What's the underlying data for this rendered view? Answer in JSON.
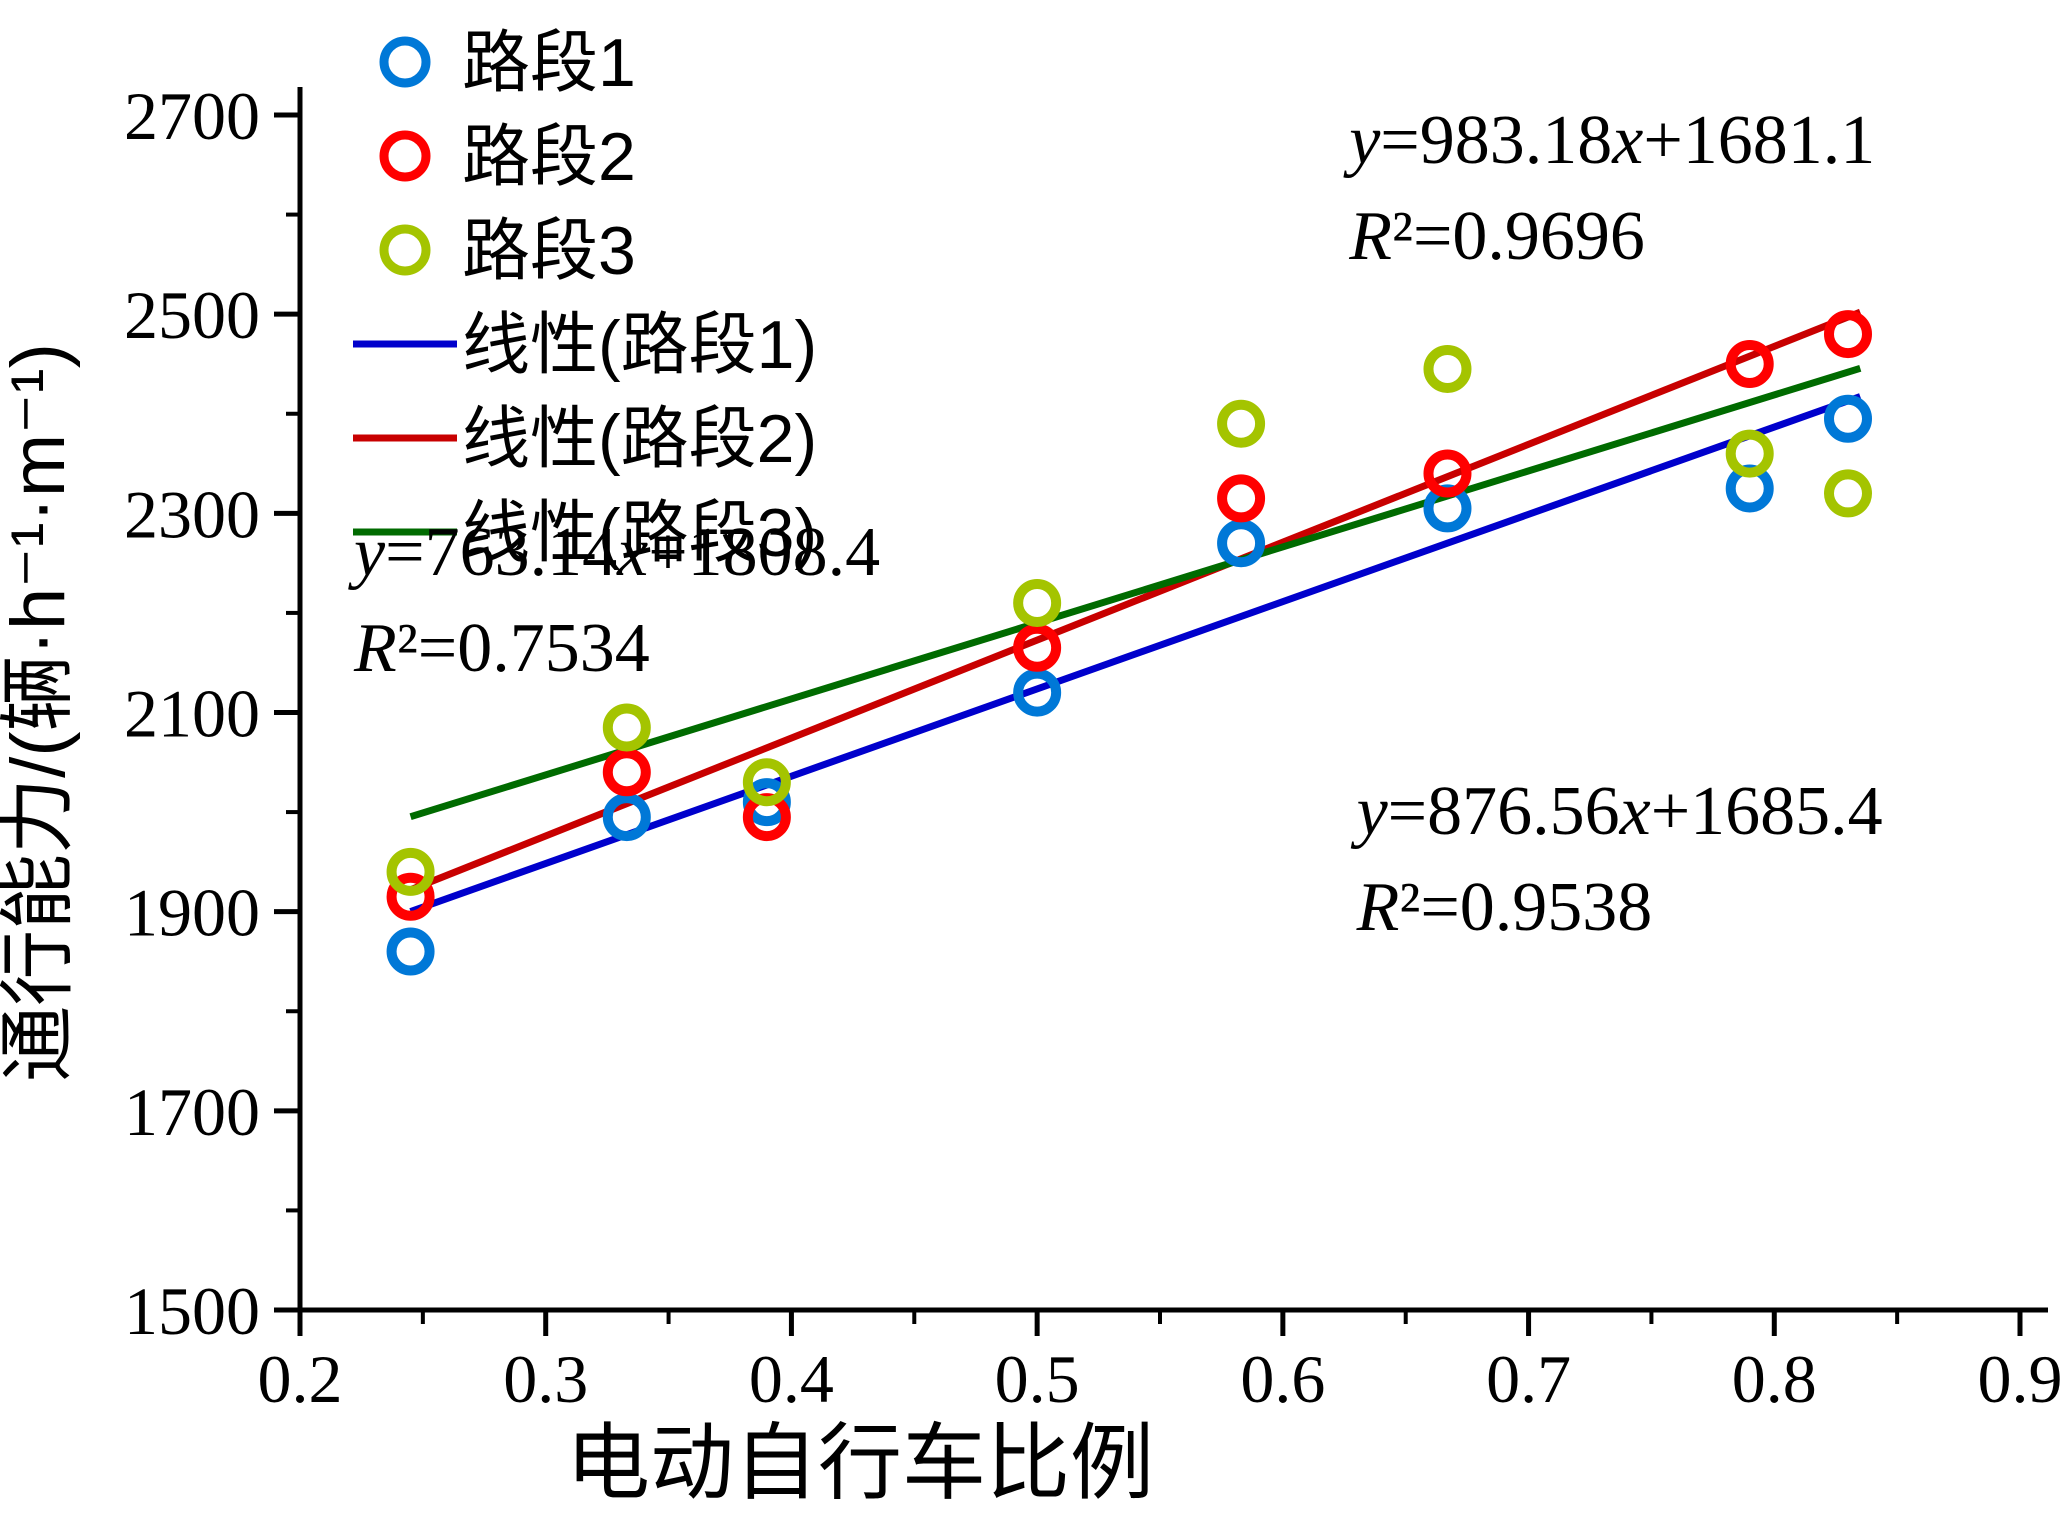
{
  "chart_data": {
    "type": "scatter",
    "title": "",
    "xlabel": "电动自行车比例",
    "ylabel": "通行能力/(辆·h⁻¹·m⁻¹)",
    "xlim": [
      0.2,
      0.9
    ],
    "ylim": [
      1500,
      2700
    ],
    "x_ticks": [
      0.2,
      0.3,
      0.4,
      0.5,
      0.6,
      0.7,
      0.8,
      0.9
    ],
    "y_ticks": [
      1500,
      1700,
      1900,
      2100,
      2300,
      2500,
      2700
    ],
    "grid": false,
    "legend_position": "top-left",
    "x": [
      0.245,
      0.333,
      0.39,
      0.5,
      0.583,
      0.667,
      0.79,
      0.83
    ],
    "series": [
      {
        "name": "路段1",
        "color": "#0078D7",
        "values": [
          1860,
          1995,
          2010,
          2120,
          2270,
          2305,
          2325,
          2395
        ]
      },
      {
        "name": "路段2",
        "color": "#FF0000",
        "values": [
          1915,
          2040,
          1995,
          2165,
          2315,
          2340,
          2450,
          2480
        ]
      },
      {
        "name": "路段3",
        "color": "#A4C400",
        "values": [
          1940,
          2085,
          2030,
          2210,
          2390,
          2445,
          2360,
          2320
        ]
      }
    ],
    "trendlines": [
      {
        "name": "线性(路段1)",
        "color": "#0000CC",
        "slope": 876.56,
        "intercept": 1685.4,
        "x_start": 0.245,
        "x_end": 0.835
      },
      {
        "name": "线性(路段2)",
        "color": "#C80000",
        "slope": 983.18,
        "intercept": 1681.1,
        "x_start": 0.245,
        "x_end": 0.835
      },
      {
        "name": "线性(路段3)",
        "color": "#006B00",
        "slope": 763.14,
        "intercept": 1808.4,
        "x_start": 0.245,
        "x_end": 0.835
      }
    ],
    "annotations": [
      {
        "series": "路段2",
        "lines": [
          "y=983.18x+1681.1",
          "R²=0.9696"
        ],
        "x": 0.627,
        "y": 2652
      },
      {
        "series": "路段3",
        "lines": [
          "y=763.14x+1808.4",
          "R²=0.7534"
        ],
        "x": 0.222,
        "y": 2238
      },
      {
        "series": "路段1",
        "lines": [
          "y=876.56x+1685.4",
          "R²=0.9538"
        ],
        "x": 0.63,
        "y": 1978
      }
    ]
  }
}
